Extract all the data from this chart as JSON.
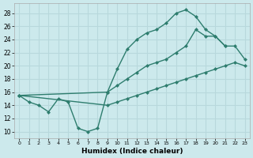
{
  "xlabel": "Humidex (Indice chaleur)",
  "bg_color": "#cce9ec",
  "line_color": "#2e7d6e",
  "grid_color": "#b8d8dc",
  "xlim": [
    -0.5,
    23.5
  ],
  "ylim": [
    9,
    29.5
  ],
  "xticks": [
    0,
    1,
    2,
    3,
    4,
    5,
    6,
    7,
    8,
    9,
    10,
    11,
    12,
    13,
    14,
    15,
    16,
    17,
    18,
    19,
    20,
    21,
    22,
    23
  ],
  "yticks": [
    10,
    12,
    14,
    16,
    18,
    20,
    22,
    24,
    26,
    28
  ],
  "line_top_x": [
    0,
    1,
    2,
    3,
    4,
    5,
    6,
    7,
    8,
    9,
    10,
    11,
    12,
    13,
    14,
    15,
    16,
    17,
    18,
    19,
    20,
    21
  ],
  "line_top_y": [
    15.5,
    14.5,
    14.0,
    13.0,
    15.0,
    14.5,
    10.5,
    10.0,
    10.5,
    16.0,
    19.5,
    22.5,
    24.0,
    25.0,
    25.5,
    26.5,
    28.0,
    28.5,
    27.5,
    25.5,
    24.5,
    23.0
  ],
  "line_mid_x": [
    0,
    9,
    10,
    11,
    12,
    13,
    14,
    15,
    16,
    17,
    18,
    19,
    20,
    21,
    22,
    23
  ],
  "line_mid_y": [
    15.5,
    16.0,
    17.0,
    18.0,
    19.0,
    20.0,
    20.5,
    21.0,
    22.0,
    23.0,
    25.5,
    24.5,
    24.5,
    23.0,
    23.0,
    21.0
  ],
  "line_bot_x": [
    0,
    9,
    10,
    11,
    12,
    13,
    14,
    15,
    16,
    17,
    18,
    19,
    20,
    21,
    22,
    23
  ],
  "line_bot_y": [
    15.5,
    14.0,
    14.5,
    15.0,
    15.5,
    16.0,
    16.5,
    17.0,
    17.5,
    18.0,
    18.5,
    19.0,
    19.5,
    20.0,
    20.5,
    20.0
  ]
}
